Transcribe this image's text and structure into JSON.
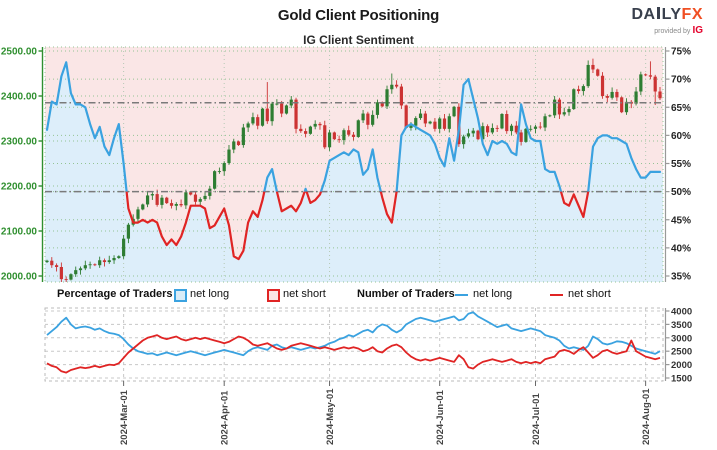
{
  "header": {
    "title": "Gold Client Positioning",
    "subtitle": "IG Client Sentiment",
    "logo": {
      "part1": "DA",
      "part2": "LY",
      "accent": "FX",
      "tagline": "provided by",
      "brand": "IG"
    }
  },
  "legend": {
    "pct_title": "Percentage of Traders",
    "pct_long": "net long",
    "pct_short": "net short",
    "num_title": "Number of Traders",
    "num_long": "net long",
    "num_short": "net short"
  },
  "colors": {
    "price_axis": "#2f8f2f",
    "pct_axis": "#222222",
    "long_line": "#3aa2e0",
    "short_line": "#e02424",
    "long_fill": "#ddeefa",
    "short_fill": "#fae6e6",
    "candle_up": "#2e7d32",
    "candle_down": "#cc3333",
    "grid_green": "#94c494",
    "grid_gray": "#c8c8c8",
    "reference": "#7a7a7a",
    "axis_gray": "#999999"
  },
  "chart_data": [
    {
      "type": "candlestick",
      "title": "IG Client Sentiment",
      "x": {
        "start_date": "2024-02-08",
        "end_date": "2024-08-06",
        "frequency": "business_days",
        "tick_labels": [
          "2024-Mar-01",
          "2024-Apr-01",
          "2024-May-01",
          "2024-Jun-01",
          "2024-Jul-01",
          "2024-Aug-01"
        ],
        "tick_indices": [
          16,
          37,
          59,
          82,
          102,
          125
        ]
      },
      "price_axis": {
        "side": "left",
        "min": 2000,
        "max": 2500,
        "tick_values": [
          2500,
          2400,
          2300,
          2200,
          2100,
          2000
        ],
        "tick_labels": [
          "2500.00",
          "2400.00",
          "2300.00",
          "2200.00",
          "2100.00",
          "2000.00"
        ]
      },
      "pct_axis": {
        "side": "right",
        "min": 35,
        "max": 75,
        "tick_values": [
          75,
          70,
          65,
          60,
          55,
          50,
          45,
          40,
          35
        ],
        "tick_labels": [
          "75%",
          "70%",
          "65%",
          "60%",
          "55%",
          "50%",
          "45%",
          "40%",
          "35%"
        ]
      },
      "reference_lines": [
        {
          "axis": "price",
          "value": 2385
        },
        {
          "axis": "pct",
          "value": 50
        }
      ],
      "series": [
        {
          "name": "gold-price-candles",
          "type": "candlestick",
          "first_open": 2031,
          "closes": [
            2034,
            2024,
            2020,
            1993,
            1992,
            2004,
            2013,
            2017,
            2024,
            2026,
            2024,
            2035,
            2031,
            2035,
            2040,
            2044,
            2083,
            2114,
            2127,
            2148,
            2159,
            2179,
            2182,
            2158,
            2174,
            2162,
            2156,
            2160,
            2157,
            2186,
            2181,
            2165,
            2171,
            2178,
            2194,
            2233,
            2233,
            2251,
            2281,
            2299,
            2291,
            2330,
            2339,
            2353,
            2334,
            2372,
            2344,
            2383,
            2383,
            2361,
            2379,
            2392,
            2327,
            2322,
            2316,
            2332,
            2338,
            2335,
            2286,
            2319,
            2304,
            2302,
            2324,
            2314,
            2309,
            2346,
            2361,
            2336,
            2358,
            2386,
            2377,
            2415,
            2425,
            2421,
            2379,
            2329,
            2334,
            2351,
            2361,
            2339,
            2343,
            2327,
            2350,
            2327,
            2355,
            2376,
            2293,
            2310,
            2317,
            2323,
            2304,
            2333,
            2319,
            2329,
            2328,
            2360,
            2322,
            2334,
            2319,
            2298,
            2327,
            2327,
            2332,
            2330,
            2355,
            2357,
            2392,
            2359,
            2364,
            2371,
            2415,
            2411,
            2422,
            2469,
            2459,
            2445,
            2400,
            2396,
            2409,
            2397,
            2364,
            2387,
            2383,
            2410,
            2448,
            2446,
            2443,
            2410,
            2395
          ],
          "wick_overrides": {
            "3": {
              "low": 1985
            },
            "46": {
              "high": 2431
            },
            "72": {
              "high": 2450
            },
            "86": {
              "low": 2287
            },
            "114": {
              "high": 2483
            },
            "126": {
              "high": 2477
            },
            "127": {
              "low": 2380
            }
          }
        },
        {
          "name": "net-long-percent",
          "type": "line",
          "color_above_50": "#3aa2e0",
          "color_below_50": "#e02424",
          "fill_above_line": "#fae6e6",
          "fill_below_line": "#ddeefa",
          "values": [
            61,
            66,
            65.5,
            70.5,
            73,
            67.5,
            65.5,
            65.5,
            65,
            62,
            59.5,
            61.5,
            58,
            56.5,
            59.5,
            62,
            55,
            47,
            44.5,
            44.5,
            45,
            44.5,
            45,
            44.5,
            42,
            40.5,
            41.5,
            40.5,
            42,
            44.5,
            47.5,
            47.5,
            47.5,
            47,
            43.5,
            44,
            45.5,
            47,
            44,
            38.5,
            38,
            39.5,
            44.5,
            46.5,
            45.5,
            48.5,
            52.5,
            54,
            50,
            46.5,
            47,
            47.5,
            46.5,
            48,
            50.5,
            48,
            48.5,
            49.5,
            52,
            55.5,
            56,
            56.5,
            57,
            56.5,
            57.5,
            57,
            53,
            54,
            57.5,
            52.5,
            49,
            46,
            44.5,
            50,
            60,
            61.5,
            62,
            61.5,
            61,
            60.5,
            60,
            58.5,
            56,
            54.5,
            59.5,
            55.5,
            61,
            69,
            70,
            66.5,
            63,
            58.5,
            56.5,
            59,
            58.5,
            59,
            58.5,
            57,
            56.5,
            65.5,
            62,
            59.5,
            59,
            59,
            54,
            53.5,
            53.5,
            51,
            48,
            47.5,
            49.5,
            47.5,
            45.5,
            50,
            58,
            59.5,
            60,
            60,
            59.5,
            59.5,
            59,
            58.5,
            56,
            54,
            52.5,
            52.5,
            53.5,
            53.5,
            53.5
          ]
        }
      ]
    },
    {
      "type": "line",
      "count_axis": {
        "side": "right",
        "min": 1500,
        "max": 4000,
        "tick_values": [
          4000,
          3500,
          3000,
          2500,
          2000,
          1500
        ],
        "tick_labels": [
          "4000",
          "3500",
          "3000",
          "2500",
          "2000",
          "1500"
        ]
      },
      "series": [
        {
          "name": "net-long-traders",
          "color": "#3aa2e0",
          "values": [
            3100,
            3250,
            3400,
            3600,
            3750,
            3500,
            3350,
            3400,
            3420,
            3380,
            3300,
            3350,
            3250,
            3180,
            3150,
            3100,
            2950,
            2750,
            2600,
            2500,
            2450,
            2400,
            2420,
            2350,
            2400,
            2450,
            2400,
            2350,
            2400,
            2450,
            2500,
            2450,
            2400,
            2350,
            2400,
            2450,
            2500,
            2550,
            2500,
            2450,
            2400,
            2350,
            2500,
            2600,
            2650,
            2600,
            2550,
            2700,
            2750,
            2650,
            2600,
            2650,
            2600,
            2550,
            2600,
            2650,
            2600,
            2650,
            2700,
            2800,
            2850,
            2950,
            3000,
            3100,
            3050,
            3150,
            3250,
            3300,
            3200,
            3400,
            3500,
            3450,
            3300,
            3200,
            3300,
            3500,
            3600,
            3700,
            3750,
            3700,
            3650,
            3600,
            3650,
            3700,
            3750,
            3800,
            3650,
            3700,
            3900,
            3950,
            3800,
            3700,
            3600,
            3500,
            3400,
            3450,
            3500,
            3350,
            3300,
            3250,
            3300,
            3350,
            3300,
            3250,
            3100,
            3050,
            3000,
            2900,
            2700,
            2600,
            2650,
            2600,
            2550,
            2700,
            3050,
            2950,
            2800,
            2750,
            2800,
            2870,
            2850,
            2800,
            2700,
            2600,
            2550,
            2500,
            2450,
            2400,
            2500
          ]
        },
        {
          "name": "net-short-traders",
          "color": "#e02424",
          "values": [
            2050,
            1950,
            1900,
            1750,
            1700,
            1800,
            1850,
            1900,
            1870,
            1900,
            1950,
            1900,
            1950,
            2000,
            1980,
            2050,
            2250,
            2450,
            2600,
            2750,
            2900,
            3000,
            3050,
            3100,
            3000,
            2950,
            3000,
            3050,
            2950,
            2900,
            2950,
            3000,
            2950,
            3000,
            2950,
            2900,
            2850,
            2800,
            2850,
            2950,
            3050,
            3000,
            2900,
            2750,
            2700,
            2750,
            2800,
            2700,
            2600,
            2550,
            2600,
            2700,
            2750,
            2800,
            2750,
            2700,
            2650,
            2600,
            2650,
            2600,
            2550,
            2600,
            2650,
            2600,
            2650,
            2600,
            2500,
            2550,
            2650,
            2500,
            2450,
            2600,
            2700,
            2750,
            2650,
            2450,
            2300,
            2200,
            2150,
            2200,
            2150,
            2200,
            2250,
            2200,
            2150,
            2100,
            2350,
            2200,
            1900,
            1850,
            2000,
            2100,
            2150,
            2200,
            2150,
            2100,
            2150,
            2200,
            2100,
            2050,
            2100,
            2050,
            2100,
            2050,
            2200,
            2250,
            2300,
            2500,
            2550,
            2500,
            2400,
            2550,
            2650,
            2450,
            2250,
            2350,
            2500,
            2550,
            2450,
            2400,
            2450,
            2500,
            2900,
            2500,
            2400,
            2300,
            2250,
            2200,
            2250
          ]
        }
      ]
    }
  ]
}
